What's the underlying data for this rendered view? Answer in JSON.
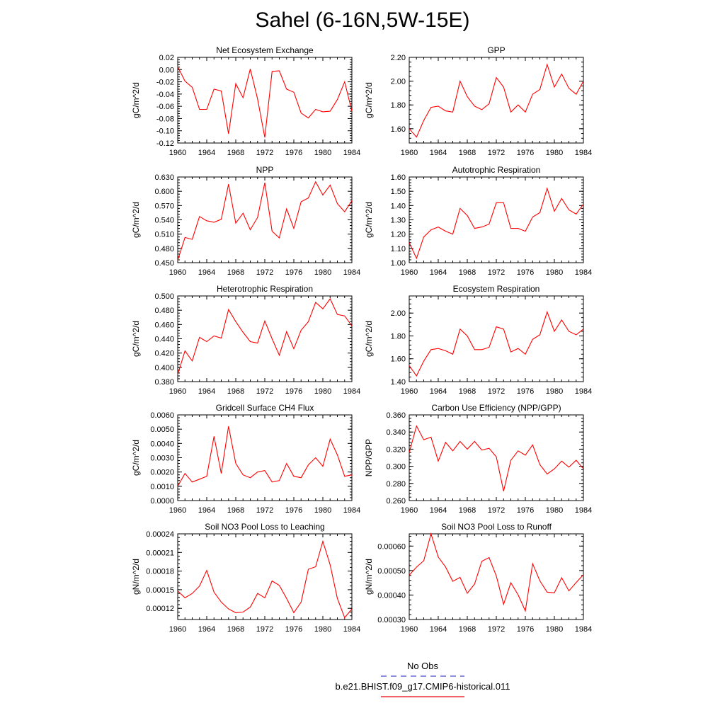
{
  "title": "Sahel (6-16N,5W-15E)",
  "legend": [
    {
      "label": "No Obs",
      "color": "#4a4acc",
      "style": "dashed"
    },
    {
      "label": "b.e21.BHIST.f09_g17.CMIP6-historical.011",
      "color": "#e8000b",
      "style": "solid"
    }
  ],
  "colors": {
    "series": "#ff0000",
    "axis": "#000000"
  },
  "chart_data": [
    {
      "type": "line",
      "title": "Net Ecosystem Exchange",
      "ylabel": "gC/m^2/d",
      "xlabel": "",
      "x": [
        1960,
        1961,
        1962,
        1963,
        1964,
        1965,
        1966,
        1967,
        1968,
        1969,
        1970,
        1971,
        1972,
        1973,
        1974,
        1975,
        1976,
        1977,
        1978,
        1979,
        1980,
        1981,
        1982,
        1983,
        1984
      ],
      "xlim": [
        1960,
        1984
      ],
      "xticks": [
        "1960",
        "1964",
        "1968",
        "1972",
        "1976",
        "1980",
        "1984"
      ],
      "ylim": [
        -0.12,
        0.02
      ],
      "yticks": [
        "0.02",
        "0.00",
        "-0.02",
        "-0.04",
        "-0.06",
        "-0.08",
        "-0.10",
        "-0.12"
      ],
      "series": [
        {
          "values": [
            0.005,
            -0.019,
            -0.029,
            -0.065,
            -0.065,
            -0.032,
            -0.035,
            -0.105,
            -0.023,
            -0.046,
            0.001,
            -0.048,
            -0.111,
            -0.003,
            -0.002,
            -0.032,
            -0.037,
            -0.071,
            -0.079,
            -0.065,
            -0.069,
            -0.068,
            -0.049,
            -0.02,
            -0.068
          ]
        }
      ]
    },
    {
      "type": "line",
      "title": "GPP",
      "ylabel": "gC/m^2/d",
      "xlabel": "",
      "x": [
        1960,
        1961,
        1962,
        1963,
        1964,
        1965,
        1966,
        1967,
        1968,
        1969,
        1970,
        1971,
        1972,
        1973,
        1974,
        1975,
        1976,
        1977,
        1978,
        1979,
        1980,
        1981,
        1982,
        1983,
        1984
      ],
      "xlim": [
        1960,
        1984
      ],
      "xticks": [
        "1960",
        "1964",
        "1968",
        "1972",
        "1976",
        "1980",
        "1984"
      ],
      "ylim": [
        1.48,
        2.2
      ],
      "yticks": [
        "2.20",
        "2.00",
        "1.80",
        "1.60"
      ],
      "series": [
        {
          "values": [
            1.6,
            1.53,
            1.67,
            1.78,
            1.79,
            1.75,
            1.74,
            2.0,
            1.87,
            1.79,
            1.76,
            1.81,
            2.03,
            1.95,
            1.74,
            1.8,
            1.74,
            1.89,
            1.93,
            2.14,
            1.95,
            2.06,
            1.94,
            1.89,
            2.0
          ]
        }
      ]
    },
    {
      "type": "line",
      "title": "NPP",
      "ylabel": "gC/m^2/d",
      "xlabel": "",
      "x": [
        1960,
        1961,
        1962,
        1963,
        1964,
        1965,
        1966,
        1967,
        1968,
        1969,
        1970,
        1971,
        1972,
        1973,
        1974,
        1975,
        1976,
        1977,
        1978,
        1979,
        1980,
        1981,
        1982,
        1983,
        1984
      ],
      "xlim": [
        1960,
        1984
      ],
      "xticks": [
        "1960",
        "1964",
        "1968",
        "1972",
        "1976",
        "1980",
        "1984"
      ],
      "ylim": [
        0.45,
        0.63
      ],
      "yticks": [
        "0.630",
        "0.600",
        "0.570",
        "0.540",
        "0.510",
        "0.480",
        "0.450"
      ],
      "series": [
        {
          "values": [
            0.455,
            0.503,
            0.499,
            0.547,
            0.538,
            0.535,
            0.541,
            0.615,
            0.533,
            0.554,
            0.519,
            0.545,
            0.618,
            0.516,
            0.502,
            0.563,
            0.522,
            0.578,
            0.586,
            0.62,
            0.592,
            0.613,
            0.574,
            0.557,
            0.58
          ]
        }
      ]
    },
    {
      "type": "line",
      "title": "Autotrophic Respiration",
      "ylabel": "gC/m^2/d",
      "xlabel": "",
      "x": [
        1960,
        1961,
        1962,
        1963,
        1964,
        1965,
        1966,
        1967,
        1968,
        1969,
        1970,
        1971,
        1972,
        1973,
        1974,
        1975,
        1976,
        1977,
        1978,
        1979,
        1980,
        1981,
        1982,
        1983,
        1984
      ],
      "xlim": [
        1960,
        1984
      ],
      "xticks": [
        "1960",
        "1964",
        "1968",
        "1972",
        "1976",
        "1980",
        "1984"
      ],
      "ylim": [
        1.0,
        1.6
      ],
      "yticks": [
        "1.60",
        "1.50",
        "1.40",
        "1.30",
        "1.20",
        "1.10",
        "1.00"
      ],
      "series": [
        {
          "values": [
            1.14,
            1.03,
            1.18,
            1.23,
            1.25,
            1.22,
            1.2,
            1.38,
            1.33,
            1.24,
            1.25,
            1.27,
            1.42,
            1.42,
            1.24,
            1.24,
            1.22,
            1.32,
            1.35,
            1.52,
            1.36,
            1.45,
            1.37,
            1.34,
            1.41
          ]
        }
      ]
    },
    {
      "type": "line",
      "title": "Heterotrophic Respiration",
      "ylabel": "gC/m^2/d",
      "xlabel": "",
      "x": [
        1960,
        1961,
        1962,
        1963,
        1964,
        1965,
        1966,
        1967,
        1968,
        1969,
        1970,
        1971,
        1972,
        1973,
        1974,
        1975,
        1976,
        1977,
        1978,
        1979,
        1980,
        1981,
        1982,
        1983,
        1984
      ],
      "xlim": [
        1960,
        1984
      ],
      "xticks": [
        "1960",
        "1964",
        "1968",
        "1972",
        "1976",
        "1980",
        "1984"
      ],
      "ylim": [
        0.38,
        0.5
      ],
      "yticks": [
        "0.500",
        "0.480",
        "0.460",
        "0.440",
        "0.420",
        "0.400",
        "0.380"
      ],
      "series": [
        {
          "values": [
            0.39,
            0.423,
            0.409,
            0.442,
            0.436,
            0.444,
            0.441,
            0.481,
            0.464,
            0.449,
            0.436,
            0.434,
            0.465,
            0.44,
            0.417,
            0.45,
            0.426,
            0.452,
            0.464,
            0.491,
            0.482,
            0.496,
            0.474,
            0.472,
            0.458
          ]
        }
      ]
    },
    {
      "type": "line",
      "title": "Ecosystem Respiration",
      "ylabel": "gC/m^2/d",
      "xlabel": "",
      "x": [
        1960,
        1961,
        1962,
        1963,
        1964,
        1965,
        1966,
        1967,
        1968,
        1969,
        1970,
        1971,
        1972,
        1973,
        1974,
        1975,
        1976,
        1977,
        1978,
        1979,
        1980,
        1981,
        1982,
        1983,
        1984
      ],
      "xlim": [
        1960,
        1984
      ],
      "xticks": [
        "1960",
        "1964",
        "1968",
        "1972",
        "1976",
        "1980",
        "1984"
      ],
      "ylim": [
        1.4,
        2.15
      ],
      "yticks": [
        "2.00",
        "1.80",
        "1.60",
        "1.40"
      ],
      "series": [
        {
          "values": [
            1.54,
            1.45,
            1.58,
            1.68,
            1.69,
            1.67,
            1.64,
            1.86,
            1.8,
            1.68,
            1.68,
            1.7,
            1.88,
            1.86,
            1.66,
            1.69,
            1.64,
            1.77,
            1.81,
            2.01,
            1.84,
            1.94,
            1.84,
            1.81,
            1.86
          ]
        }
      ]
    },
    {
      "type": "line",
      "title": "Gridcell Surface CH4 Flux",
      "ylabel": "gC/m^2/d",
      "xlabel": "",
      "x": [
        1960,
        1961,
        1962,
        1963,
        1964,
        1965,
        1966,
        1967,
        1968,
        1969,
        1970,
        1971,
        1972,
        1973,
        1974,
        1975,
        1976,
        1977,
        1978,
        1979,
        1980,
        1981,
        1982,
        1983,
        1984
      ],
      "xlim": [
        1960,
        1984
      ],
      "xticks": [
        "1960",
        "1964",
        "1968",
        "1972",
        "1976",
        "1980",
        "1984"
      ],
      "ylim": [
        0.0,
        0.006
      ],
      "yticks": [
        "0.0060",
        "0.0050",
        "0.0040",
        "0.0030",
        "0.0020",
        "0.0010",
        "0.0000"
      ],
      "series": [
        {
          "values": [
            0.001,
            0.0019,
            0.0013,
            0.0015,
            0.0017,
            0.0045,
            0.0019,
            0.0052,
            0.0026,
            0.0018,
            0.0016,
            0.002,
            0.0021,
            0.0013,
            0.0014,
            0.0026,
            0.0017,
            0.0016,
            0.0025,
            0.003,
            0.0024,
            0.0043,
            0.0032,
            0.0017,
            0.0018
          ]
        }
      ]
    },
    {
      "type": "line",
      "title": "Carbon Use Efficiency (NPP/GPP)",
      "ylabel": "NPP/GPP",
      "xlabel": "",
      "x": [
        1960,
        1961,
        1962,
        1963,
        1964,
        1965,
        1966,
        1967,
        1968,
        1969,
        1970,
        1971,
        1972,
        1973,
        1974,
        1975,
        1976,
        1977,
        1978,
        1979,
        1980,
        1981,
        1982,
        1983,
        1984
      ],
      "xlim": [
        1960,
        1984
      ],
      "xticks": [
        "1960",
        "1964",
        "1968",
        "1972",
        "1976",
        "1980",
        "1984"
      ],
      "ylim": [
        0.26,
        0.36
      ],
      "yticks": [
        "0.360",
        "0.340",
        "0.320",
        "0.300",
        "0.280",
        "0.260"
      ],
      "series": [
        {
          "values": [
            0.316,
            0.347,
            0.331,
            0.334,
            0.306,
            0.328,
            0.318,
            0.329,
            0.32,
            0.329,
            0.319,
            0.321,
            0.311,
            0.271,
            0.307,
            0.318,
            0.313,
            0.325,
            0.302,
            0.291,
            0.297,
            0.306,
            0.299,
            0.307,
            0.297
          ]
        }
      ]
    },
    {
      "type": "line",
      "title": "Soil NO3 Pool Loss to Leaching",
      "ylabel": "gN/m^2/d",
      "xlabel": "",
      "x": [
        1960,
        1961,
        1962,
        1963,
        1964,
        1965,
        1966,
        1967,
        1968,
        1969,
        1970,
        1971,
        1972,
        1973,
        1974,
        1975,
        1976,
        1977,
        1978,
        1979,
        1980,
        1981,
        1982,
        1983,
        1984
      ],
      "xlim": [
        1960,
        1984
      ],
      "xticks": [
        "1960",
        "1964",
        "1968",
        "1972",
        "1976",
        "1980",
        "1984"
      ],
      "ylim": [
        0.000102,
        0.00024
      ],
      "yticks": [
        "0.00024",
        "0.00021",
        "0.00018",
        "0.00015",
        "0.00012"
      ],
      "series": [
        {
          "values": [
            0.000148,
            0.000137,
            0.000144,
            0.000156,
            0.000181,
            0.000146,
            0.00013,
            0.000119,
            0.000113,
            0.000114,
            0.000122,
            0.000144,
            0.000137,
            0.000164,
            0.000157,
            0.000136,
            0.000113,
            0.00013,
            0.000183,
            0.000187,
            0.000228,
            0.00019,
            0.000136,
            0.000105,
            0.000119
          ]
        }
      ]
    },
    {
      "type": "line",
      "title": "Soil NO3 Pool Loss to Runoff",
      "ylabel": "gN/m^2/d",
      "xlabel": "",
      "x": [
        1960,
        1961,
        1962,
        1963,
        1964,
        1965,
        1966,
        1967,
        1968,
        1969,
        1970,
        1971,
        1972,
        1973,
        1974,
        1975,
        1976,
        1977,
        1978,
        1979,
        1980,
        1981,
        1982,
        1983,
        1984
      ],
      "xlim": [
        1960,
        1984
      ],
      "xticks": [
        "1960",
        "1964",
        "1968",
        "1972",
        "1976",
        "1980",
        "1984"
      ],
      "ylim": [
        0.0003,
        0.00065
      ],
      "yticks": [
        "0.00060",
        "0.00050",
        "0.00040",
        "0.00030"
      ],
      "series": [
        {
          "values": [
            0.000481,
            0.000514,
            0.00054,
            0.00065,
            0.000555,
            0.000515,
            0.000456,
            0.000472,
            0.000407,
            0.000445,
            0.000538,
            0.000553,
            0.000478,
            0.000362,
            0.00045,
            0.000401,
            0.000335,
            0.000528,
            0.000458,
            0.000412,
            0.000409,
            0.000471,
            0.000417,
            0.000451,
            0.000483
          ]
        }
      ]
    }
  ]
}
